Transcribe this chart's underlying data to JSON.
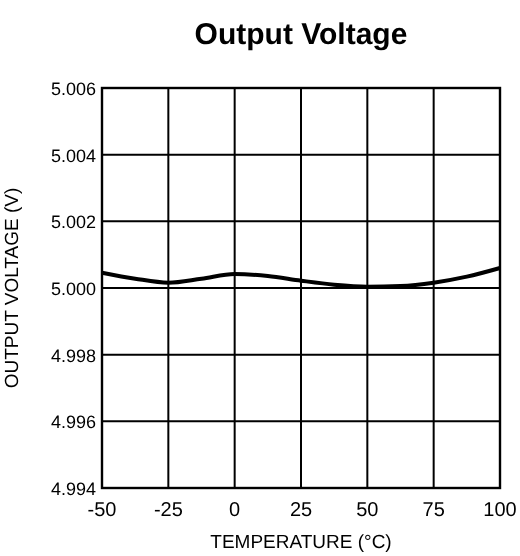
{
  "chart_data": {
    "type": "line",
    "title": "Output Voltage",
    "xlabel": "TEMPERATURE (°C)",
    "ylabel": "OUTPUT VOLTAGE (V)",
    "x": [
      -50,
      -37.5,
      -25,
      -12.5,
      0,
      12.5,
      25,
      37.5,
      50,
      62.5,
      75,
      87.5,
      100
    ],
    "series": [
      {
        "color": "#000000",
        "values": [
          5.00046,
          5.00028,
          5.00016,
          5.00028,
          5.00042,
          5.00036,
          5.00022,
          5.0001,
          5.00004,
          5.00006,
          5.00016,
          5.00034,
          5.0006
        ]
      }
    ],
    "xlim": [
      -50,
      100
    ],
    "xticks": [
      -50,
      -25,
      0,
      25,
      50,
      75,
      100
    ],
    "ylim": [
      4.994,
      5.006
    ],
    "yticks": [
      {
        "value": 4.994,
        "label": "4.994"
      },
      {
        "value": 4.996,
        "label": "4.996"
      },
      {
        "value": 4.998,
        "label": "4.998"
      },
      {
        "value": 5,
        "label": "5.000"
      },
      {
        "value": 5.002,
        "label": "5.002"
      },
      {
        "value": 5.004,
        "label": "5.004"
      },
      {
        "value": 5.006,
        "label": "5.006"
      }
    ],
    "grid": true,
    "marker": "none",
    "line_style": "solid"
  }
}
